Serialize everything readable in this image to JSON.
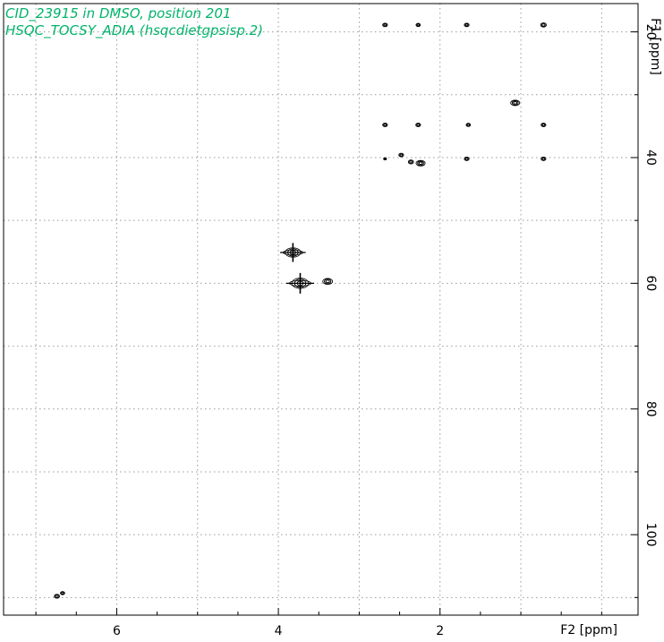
{
  "header": {
    "title_line1": "CID_23915 in DMSO, position 201",
    "title_line2": "HSQC_TOCSY_ADIA (hsqcdietgpsisp.2)"
  },
  "colors": {
    "title": "#00b36b",
    "grid": "#9a9a9a",
    "contour": "#000000",
    "frame": "#000000"
  },
  "chart_data": {
    "type": "scatter",
    "subtype": "2D NMR contour plot",
    "xlabel": "F2 [ppm]",
    "ylabel": "F1 [ppm]",
    "x_reversed": true,
    "y_reversed": true,
    "xlim": [
      7.4,
      -0.45
    ],
    "ylim": [
      112.8,
      15.5
    ],
    "x_major_ticks": [
      6,
      4,
      2
    ],
    "x_minor_ticks": [
      7,
      6.5,
      5.5,
      5,
      4.5,
      3.5,
      3,
      2.5,
      1.5,
      1,
      0.5,
      0
    ],
    "x_grid": [
      7,
      6,
      5,
      4,
      3,
      2,
      1,
      0
    ],
    "y_major_ticks": [
      20,
      40,
      60,
      80,
      100
    ],
    "y_minor_ticks": [
      30,
      50,
      70,
      90,
      110
    ],
    "y_grid": [
      20,
      30,
      40,
      50,
      60,
      70,
      80,
      90,
      100,
      110
    ],
    "grid": true,
    "peaks": [
      {
        "x": 2.68,
        "y": 18.9,
        "size": 1.0
      },
      {
        "x": 2.27,
        "y": 18.9,
        "size": 0.9
      },
      {
        "x": 1.67,
        "y": 18.9,
        "size": 1.0
      },
      {
        "x": 0.72,
        "y": 18.9,
        "size": 1.2
      },
      {
        "x": 1.07,
        "y": 31.3,
        "size": 1.3
      },
      {
        "x": 2.68,
        "y": 34.8,
        "size": 1.0
      },
      {
        "x": 2.27,
        "y": 34.8,
        "size": 1.0
      },
      {
        "x": 1.65,
        "y": 34.8,
        "size": 0.9
      },
      {
        "x": 0.72,
        "y": 34.8,
        "size": 1.0
      },
      {
        "x": 2.68,
        "y": 40.2,
        "size": 0.6
      },
      {
        "x": 2.48,
        "y": 39.6,
        "size": 1.0
      },
      {
        "x": 2.36,
        "y": 40.7,
        "size": 1.1
      },
      {
        "x": 2.24,
        "y": 40.9,
        "size": 1.3
      },
      {
        "x": 1.67,
        "y": 40.2,
        "size": 1.0
      },
      {
        "x": 0.72,
        "y": 40.2,
        "size": 1.0
      },
      {
        "x": 3.82,
        "y": 55.1,
        "size": 2.2
      },
      {
        "x": 3.73,
        "y": 60.0,
        "size": 2.4
      },
      {
        "x": 3.39,
        "y": 59.7,
        "size": 1.4
      },
      {
        "x": 6.74,
        "y": 109.8,
        "size": 1.1
      },
      {
        "x": 6.67,
        "y": 109.3,
        "size": 0.9
      }
    ]
  }
}
